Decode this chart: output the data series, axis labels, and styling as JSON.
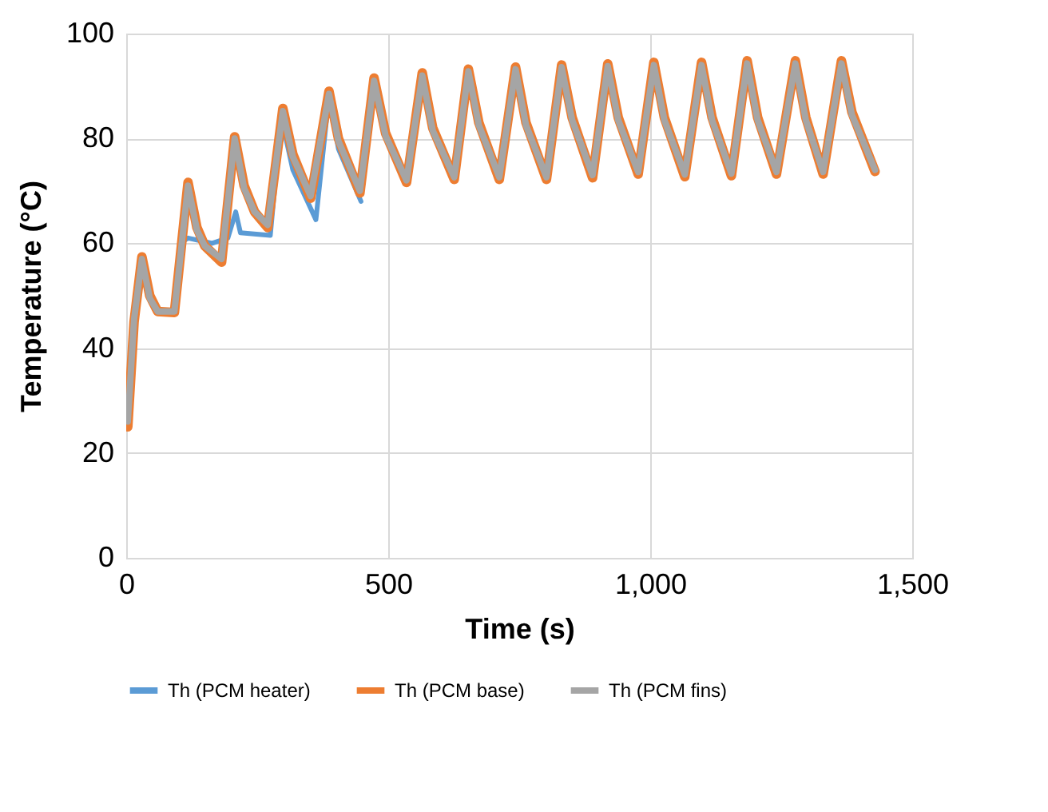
{
  "chart_data": {
    "type": "line",
    "xlabel": "Time (s)",
    "ylabel": "Temperature (°C)",
    "xlim": [
      0,
      1500
    ],
    "xticks": [
      0,
      500,
      {
        "value": 1000,
        "label": "1,000"
      },
      {
        "value": 1500,
        "label": "1,500"
      }
    ],
    "ylim": [
      0,
      100
    ],
    "yticks": [
      0,
      20,
      40,
      60,
      80,
      100
    ],
    "grid": true,
    "legend": "bottom",
    "marker": "none",
    "line_style": "solid",
    "series": [
      {
        "name": "Th (PCM heater)",
        "color": "#5b9bd5",
        "x": [
          110,
          118,
          164,
          194,
          209,
          218,
          275,
          296,
          318,
          362,
          387,
          405,
          448
        ],
        "values": [
          60.5,
          61,
          60,
          61,
          66,
          62,
          61.5,
          84,
          74,
          64.5,
          88,
          78,
          68
        ]
      },
      {
        "name": "Th (PCM base)",
        "color": "#ed7d31",
        "x": [
          3,
          15,
          30,
          45,
          60,
          92,
          118,
          135,
          150,
          182,
          207,
          225,
          245,
          270,
          299,
          318,
          352,
          387,
          405,
          446,
          473,
          495,
          535,
          565,
          585,
          626,
          653,
          673,
          712,
          743,
          763,
          802,
          831,
          851,
          890,
          919,
          939,
          977,
          1007,
          1027,
          1066,
          1098,
          1118,
          1155,
          1185,
          1205,
          1241,
          1277,
          1297,
          1330,
          1365,
          1385,
          1429
        ],
        "values": [
          25,
          45,
          57.4,
          50,
          47,
          46.8,
          71.6,
          63,
          59.5,
          56.4,
          80.3,
          71,
          66,
          63,
          85.7,
          77,
          68.6,
          89,
          80,
          69.6,
          91.5,
          81,
          71.6,
          92.5,
          82,
          72.2,
          93.2,
          83,
          72.2,
          93.6,
          83,
          72.2,
          94,
          84,
          72.5,
          94.2,
          84,
          73.2,
          94.5,
          84,
          72.7,
          94.5,
          84,
          72.9,
          94.8,
          84,
          73.2,
          94.8,
          84,
          73.2,
          94.8,
          85,
          73.7
        ]
      },
      {
        "name": "Th (PCM fins)",
        "color": "#a5a5a5",
        "x": [
          3,
          15,
          30,
          45,
          60,
          92,
          118,
          135,
          150,
          182,
          207,
          225,
          245,
          270,
          299,
          318,
          352,
          387,
          405,
          446,
          473,
          495,
          535,
          565,
          585,
          626,
          653,
          673,
          712,
          743,
          763,
          802,
          831,
          851,
          890,
          919,
          939,
          977,
          1007,
          1027,
          1066,
          1098,
          1118,
          1155,
          1185,
          1205,
          1241,
          1277,
          1297,
          1330,
          1365,
          1385,
          1429
        ],
        "values": [
          26,
          45.5,
          57,
          49.5,
          47,
          47,
          71,
          62.5,
          59.5,
          57,
          80,
          70.5,
          66,
          63.5,
          85.2,
          76.5,
          69,
          88.5,
          79.5,
          70,
          91,
          80.5,
          72,
          92,
          81.5,
          72.6,
          92.8,
          82.5,
          72.6,
          93.2,
          82.5,
          72.6,
          93.6,
          83.5,
          73,
          93.8,
          83.5,
          73.6,
          94,
          83.5,
          73.1,
          94,
          83.5,
          73.3,
          94.3,
          83.5,
          73.6,
          94.3,
          83.5,
          73.6,
          94.3,
          84.5,
          74
        ]
      }
    ]
  }
}
